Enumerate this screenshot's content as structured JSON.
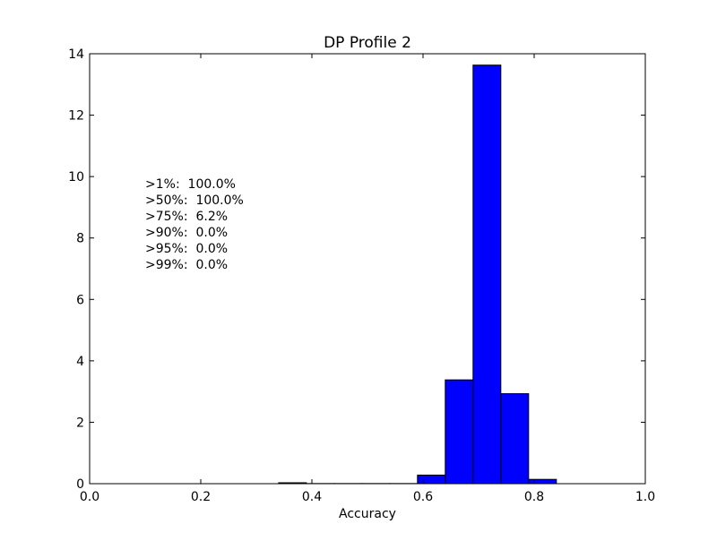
{
  "chart_data": {
    "type": "bar",
    "title": "DP Profile 2",
    "xlabel": "Accuracy",
    "ylabel": "",
    "xlim": [
      0.0,
      1.0
    ],
    "ylim": [
      0,
      14
    ],
    "xticks": [
      "0.0",
      "0.2",
      "0.4",
      "0.6",
      "0.8",
      "1.0"
    ],
    "yticks": [
      "0",
      "2",
      "4",
      "6",
      "8",
      "10",
      "12",
      "14"
    ],
    "grid": false,
    "bar_color": "#0000ff",
    "bins": [
      {
        "x0": 0.34,
        "x1": 0.39,
        "value": 0.03
      },
      {
        "x0": 0.39,
        "x1": 0.44,
        "value": 0.005
      },
      {
        "x0": 0.44,
        "x1": 0.49,
        "value": 0.005
      },
      {
        "x0": 0.49,
        "x1": 0.54,
        "value": 0.005
      },
      {
        "x0": 0.54,
        "x1": 0.59,
        "value": 0.005
      },
      {
        "x0": 0.59,
        "x1": 0.64,
        "value": 0.28
      },
      {
        "x0": 0.64,
        "x1": 0.69,
        "value": 3.38
      },
      {
        "x0": 0.69,
        "x1": 0.74,
        "value": 13.63
      },
      {
        "x0": 0.74,
        "x1": 0.79,
        "value": 2.93
      },
      {
        "x0": 0.79,
        "x1": 0.84,
        "value": 0.14
      }
    ],
    "annotations": [
      ">1%:  100.0%",
      ">50%:  100.0%",
      ">75%:  6.2%",
      ">90%:  0.0%",
      ">95%:  0.0%",
      ">99%:  0.0%"
    ]
  }
}
